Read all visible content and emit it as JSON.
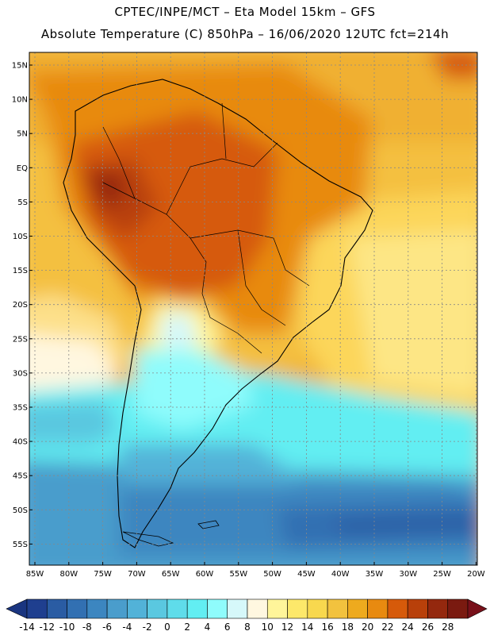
{
  "header": {
    "title_line1": "CPTEC/INPE/MCT –  Eta Model 15km – GFS",
    "title_line2": "Absolute Temperature (C) 850hPa – 16/06/2020 12UTC fct=214h"
  },
  "map": {
    "lat_labels": [
      "15N",
      "10N",
      "5N",
      "EQ",
      "5S",
      "10S",
      "15S",
      "20S",
      "25S",
      "30S",
      "35S",
      "40S",
      "45S",
      "50S",
      "55S"
    ],
    "lon_labels": [
      "85W",
      "80W",
      "75W",
      "70W",
      "65W",
      "60W",
      "55W",
      "50W",
      "45W",
      "40W",
      "35W",
      "30W",
      "25W",
      "20W"
    ]
  },
  "colorbar": {
    "labels": [
      "-14",
      "-12",
      "-10",
      "-8",
      "-6",
      "-4",
      "-2",
      "0",
      "2",
      "4",
      "6",
      "8",
      "10",
      "12",
      "14",
      "16",
      "18",
      "20",
      "22",
      "24",
      "26",
      "28"
    ],
    "colors": [
      "#1f3f8f",
      "#2a5ca3",
      "#3270b2",
      "#3c86c0",
      "#4a9dcc",
      "#52b2d8",
      "#5ac8e0",
      "#5fdcea",
      "#62eef2",
      "#8ffcfc",
      "#d6f8fa",
      "#fff7e0",
      "#fff59a",
      "#fde86a",
      "#f8d84e",
      "#f2c23e",
      "#eeaa1e",
      "#e88a10",
      "#d65a0a",
      "#b8400a",
      "#94280e",
      "#7a1a10"
    ],
    "under_color": "#1a3580",
    "over_color": "#78101a"
  }
}
